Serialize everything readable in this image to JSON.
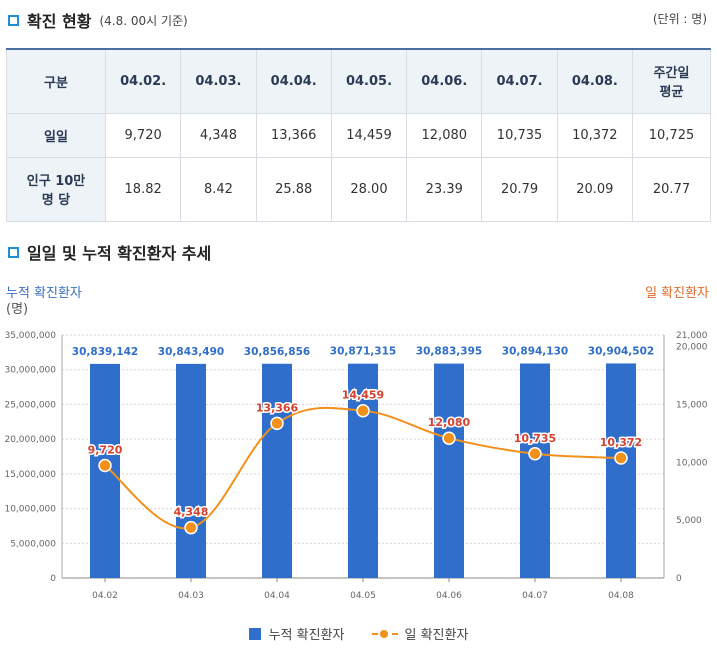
{
  "section1": {
    "title": "확진 현황",
    "subtitle": "(4.8. 00시 기준)",
    "unit": "(단위 : 명)"
  },
  "table": {
    "header": [
      "구분",
      "04.02.",
      "04.03.",
      "04.04.",
      "04.05.",
      "04.06.",
      "04.07.",
      "04.08.",
      "주간일\n평균"
    ],
    "rows": [
      {
        "label": "일일",
        "values": [
          "9,720",
          "4,348",
          "13,366",
          "14,459",
          "12,080",
          "10,735",
          "10,372",
          "10,725"
        ]
      },
      {
        "label": "인구 10만\n명 당",
        "values": [
          "18.82",
          "8.42",
          "25.88",
          "28.00",
          "23.39",
          "20.79",
          "20.09",
          "20.77"
        ]
      }
    ]
  },
  "section2": {
    "title": "일일 및 누적 확진환자 추세"
  },
  "chart_data": {
    "type": "bar",
    "categories": [
      "04.02",
      "04.03",
      "04.04",
      "04.05",
      "04.06",
      "04.07",
      "04.08"
    ],
    "series": [
      {
        "name": "누적 확진환자",
        "type": "bar",
        "axis": "left",
        "color": "#2f6ecb",
        "values": [
          30839142,
          30843490,
          30856856,
          30871315,
          30883395,
          30894130,
          30904502
        ],
        "labels": [
          "30,839,142",
          "30,843,490",
          "30,856,856",
          "30,871,315",
          "30,883,395",
          "30,894,130",
          "30,904,502"
        ]
      },
      {
        "name": "일 확진환자",
        "type": "line",
        "axis": "right",
        "color": "#f39019",
        "values": [
          9720,
          4348,
          13366,
          14459,
          12080,
          10735,
          10372
        ],
        "labels": [
          "9,720",
          "4,348",
          "13,366",
          "14,459",
          "12,080",
          "10,735",
          "10,372"
        ]
      }
    ],
    "y_left": {
      "title": "누적 확진환자",
      "unit": "(명)",
      "ylim": [
        0,
        35000000
      ],
      "ticks": [
        {
          "v": 0,
          "t": "0"
        },
        {
          "v": 5000000,
          "t": "5,000,000"
        },
        {
          "v": 10000000,
          "t": "10,000,000"
        },
        {
          "v": 15000000,
          "t": "15,000,000"
        },
        {
          "v": 20000000,
          "t": "20,000,000"
        },
        {
          "v": 25000000,
          "t": "25,000,000"
        },
        {
          "v": 30000000,
          "t": "30,000,000"
        },
        {
          "v": 35000000,
          "t": "35,000,000"
        }
      ]
    },
    "y_right": {
      "title": "일 확진환자",
      "unit": "(명)",
      "ylim": [
        0,
        21000
      ],
      "ticks": [
        {
          "v": 0,
          "t": "0"
        },
        {
          "v": 5000,
          "t": "5,000"
        },
        {
          "v": 10000,
          "t": "10,000"
        },
        {
          "v": 15000,
          "t": "15,000"
        },
        {
          "v": 20000,
          "t": "20,000"
        },
        {
          "v": 21000,
          "t": "21,000"
        }
      ]
    },
    "grid": true,
    "legend": "bottom"
  }
}
